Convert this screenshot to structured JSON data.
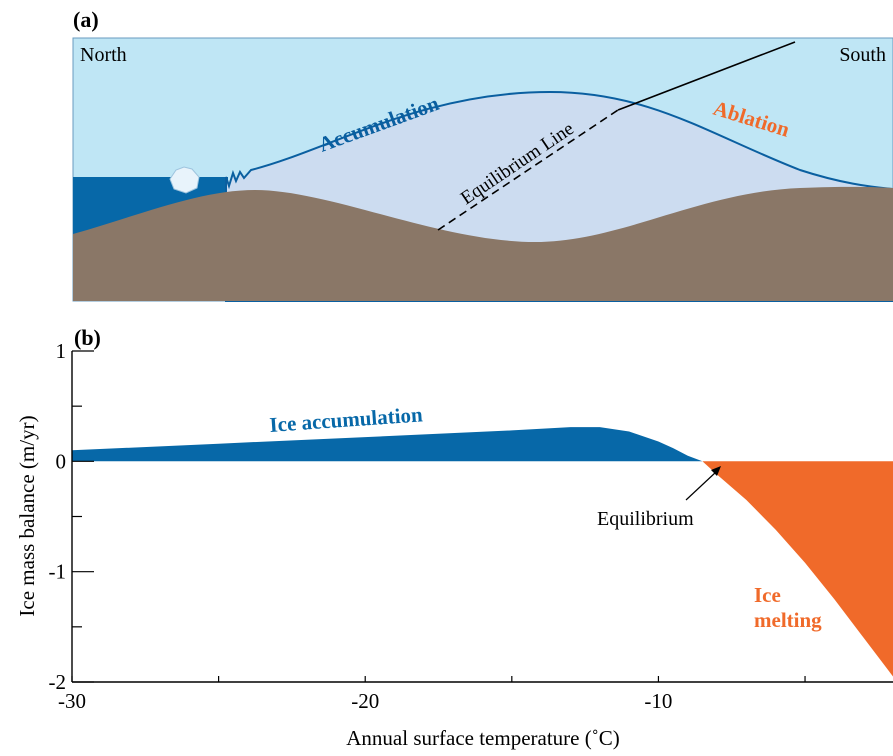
{
  "panel_a": {
    "label": "(a)",
    "north": "North",
    "south": "South",
    "accumulation": "Accumulation",
    "ablation": "Ablation",
    "equilibrium_line": "Equilibrium Line",
    "colors": {
      "sky": "#bfe6f5",
      "ice": "#ccdcf0",
      "ground": "#8a7767",
      "ocean": "#0768a8",
      "outline": "#0a5fa0",
      "ablation_text": "#f06a2a"
    }
  },
  "panel_b": {
    "label": "(b)",
    "ice_accumulation": "Ice accumulation",
    "ice_melting_1": "Ice",
    "ice_melting_2": "melting",
    "equilibrium": "Equilibrium",
    "colors": {
      "accumulation": "#0768a8",
      "melting": "#f06a2a"
    }
  },
  "chart_data": {
    "type": "area",
    "xlabel": "Annual surface temperature (˚C)",
    "ylabel": "Ice mass balance (m/yr)",
    "xlim": [
      -30,
      -2
    ],
    "ylim": [
      -2,
      1
    ],
    "x_ticks": [
      "-30",
      "-20",
      "-10"
    ],
    "y_ticks": [
      "1",
      "0",
      "-1",
      "-2"
    ],
    "series": [
      {
        "name": "Ice accumulation",
        "x": [
          -30,
          -25,
          -20,
          -15,
          -13,
          -12,
          -11,
          -10,
          -9.5,
          -9,
          -8.5
        ],
        "y": [
          0.1,
          0.16,
          0.22,
          0.28,
          0.31,
          0.31,
          0.27,
          0.18,
          0.12,
          0.05,
          0
        ]
      },
      {
        "name": "Ice melting",
        "x": [
          -8.5,
          -8,
          -7,
          -6,
          -5,
          -4,
          -3,
          -2
        ],
        "y": [
          0,
          -0.12,
          -0.35,
          -0.62,
          -0.92,
          -1.25,
          -1.6,
          -1.95
        ]
      }
    ]
  }
}
